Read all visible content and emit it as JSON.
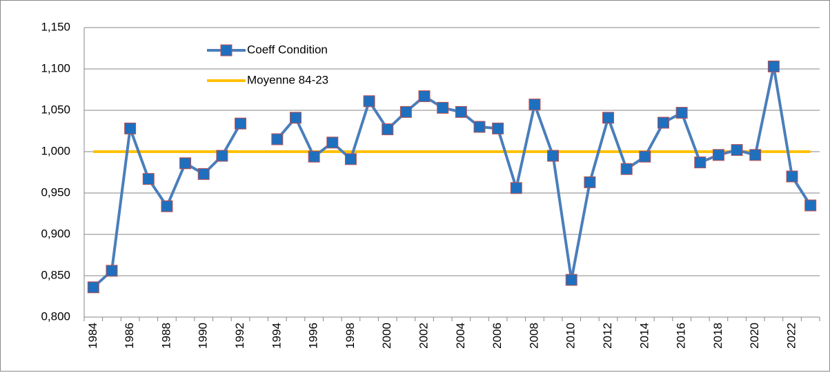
{
  "chart_data": {
    "type": "line",
    "categories": [
      1984,
      null,
      1986,
      null,
      1988,
      null,
      1990,
      null,
      1992,
      null,
      1994,
      null,
      1996,
      null,
      1998,
      null,
      2000,
      null,
      2002,
      null,
      2004,
      null,
      2006,
      null,
      2008,
      null,
      2010,
      null,
      2012,
      null,
      2014,
      null,
      2016,
      null,
      2018,
      null,
      2020,
      null,
      2022,
      null
    ],
    "series": [
      {
        "name": "Coeff Condition",
        "color": "#4a7ebb",
        "marker_color": "#1f6fbf",
        "marker_edge": "#c0504d",
        "values": [
          0.836,
          0.856,
          1.028,
          0.967,
          0.934,
          0.986,
          0.973,
          0.995,
          1.034,
          null,
          1.015,
          1.041,
          0.994,
          1.011,
          0.991,
          1.061,
          1.027,
          1.048,
          1.067,
          1.053,
          1.048,
          1.03,
          1.028,
          0.956,
          1.057,
          0.995,
          0.845,
          0.963,
          1.041,
          0.979,
          0.994,
          1.035,
          1.047,
          0.987,
          0.996,
          1.002,
          0.996,
          1.103,
          0.97,
          0.935
        ]
      },
      {
        "name": "Moyenne 84-23",
        "color": "#ffc000",
        "values": [
          1,
          1,
          1,
          1,
          1,
          1,
          1,
          1,
          1,
          1,
          1,
          1,
          1,
          1,
          1,
          1,
          1,
          1,
          1,
          1,
          1,
          1,
          1,
          1,
          1,
          1,
          1,
          1,
          1,
          1,
          1,
          1,
          1,
          1,
          1,
          1,
          1,
          1,
          1,
          1
        ]
      }
    ],
    "ylim": [
      0.8,
      1.15
    ],
    "yticks": [
      {
        "value": 0.8,
        "label": "0,800"
      },
      {
        "value": 0.85,
        "label": "0,850"
      },
      {
        "value": 0.9,
        "label": "0,900"
      },
      {
        "value": 0.95,
        "label": "0,950"
      },
      {
        "value": 1,
        "label": "1,000"
      },
      {
        "value": 1.05,
        "label": "1,050"
      },
      {
        "value": 1.1,
        "label": "1,100"
      },
      {
        "value": 1.15,
        "label": "1,150"
      }
    ],
    "grid": true
  }
}
